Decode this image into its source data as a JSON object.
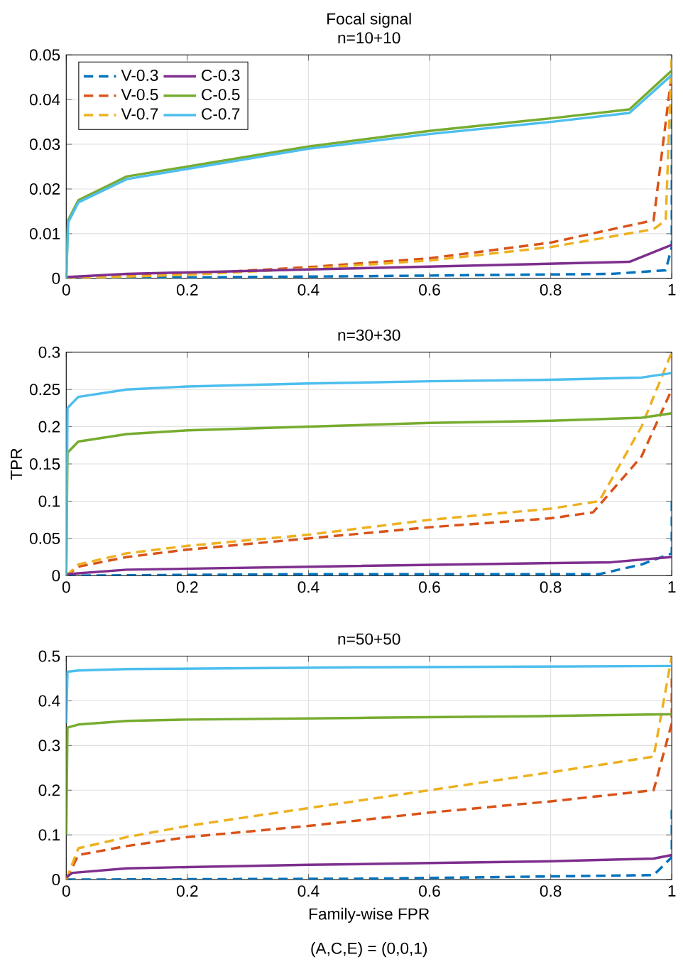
{
  "chart_data": [
    {
      "type": "line",
      "title": "Focal signal",
      "subtitle": "n=10+10",
      "xlim": [
        0,
        1
      ],
      "ylim": [
        0,
        0.05
      ],
      "xticks": [
        0,
        0.2,
        0.4,
        0.6,
        0.8,
        1
      ],
      "yticks": [
        0,
        0.01,
        0.02,
        0.03,
        0.04,
        0.05
      ],
      "grid": true,
      "legend": "top left",
      "series": [
        {
          "name": "V-0.3",
          "color": "#0072bd",
          "line_style": "dashed",
          "x": [
            0,
            0.5,
            0.9,
            0.99,
            1,
            1
          ],
          "values": [
            0,
            0.0005,
            0.001,
            0.0018,
            0.007,
            0.045
          ]
        },
        {
          "name": "V-0.5",
          "color": "#d95319",
          "line_style": "dashed",
          "x": [
            0,
            0.2,
            0.4,
            0.6,
            0.8,
            0.97,
            1
          ],
          "values": [
            0,
            0.001,
            0.0025,
            0.0045,
            0.008,
            0.013,
            0.046
          ]
        },
        {
          "name": "V-0.7",
          "color": "#edb120",
          "line_style": "dashed",
          "x": [
            0,
            0.2,
            0.4,
            0.6,
            0.8,
            0.97,
            0.99,
            1
          ],
          "values": [
            0,
            0.0008,
            0.0022,
            0.004,
            0.007,
            0.011,
            0.013,
            0.05
          ]
        },
        {
          "name": "C-0.3",
          "color": "#7e2f8e",
          "line_style": "solid",
          "x": [
            0,
            0.1,
            0.4,
            0.93,
            1
          ],
          "values": [
            0.0003,
            0.001,
            0.002,
            0.0037,
            0.0075
          ]
        },
        {
          "name": "C-0.5",
          "color": "#77ac30",
          "line_style": "solid",
          "x": [
            0,
            0.003,
            0.02,
            0.1,
            0.2,
            0.4,
            0.6,
            0.8,
            0.93,
            1
          ],
          "values": [
            0,
            0.013,
            0.0175,
            0.0228,
            0.025,
            0.0295,
            0.033,
            0.0358,
            0.0378,
            0.0465
          ]
        },
        {
          "name": "C-0.7",
          "color": "#4dbeee",
          "line_style": "solid",
          "x": [
            0,
            0.003,
            0.02,
            0.1,
            0.2,
            0.4,
            0.6,
            0.8,
            0.93,
            1
          ],
          "values": [
            0,
            0.0125,
            0.017,
            0.0222,
            0.0245,
            0.029,
            0.0323,
            0.035,
            0.037,
            0.0455
          ]
        }
      ]
    },
    {
      "type": "line",
      "title": "n=30+30",
      "ylabel": "TPR",
      "xlim": [
        0,
        1
      ],
      "ylim": [
        0,
        0.3
      ],
      "xticks": [
        0,
        0.2,
        0.4,
        0.6,
        0.8,
        1
      ],
      "yticks": [
        0,
        0.05,
        0.1,
        0.15,
        0.2,
        0.25,
        0.3
      ],
      "grid": true,
      "series": [
        {
          "color": "#0072bd",
          "line_style": "dashed",
          "x": [
            0,
            0.2,
            0.4,
            0.6,
            0.8,
            0.88,
            0.95,
            1,
            1
          ],
          "values": [
            0,
            0.001,
            0.002,
            0.002,
            0.002,
            0.002,
            0.015,
            0.03,
            0.1
          ]
        },
        {
          "color": "#d95319",
          "line_style": "dashed",
          "x": [
            0,
            0.02,
            0.1,
            0.2,
            0.4,
            0.6,
            0.8,
            0.87,
            0.95,
            1
          ],
          "values": [
            0,
            0.012,
            0.025,
            0.035,
            0.05,
            0.065,
            0.077,
            0.085,
            0.16,
            0.25
          ]
        },
        {
          "color": "#edb120",
          "line_style": "dashed",
          "x": [
            0,
            0.02,
            0.1,
            0.2,
            0.4,
            0.6,
            0.8,
            0.88,
            0.95,
            1
          ],
          "values": [
            0,
            0.015,
            0.03,
            0.04,
            0.055,
            0.075,
            0.09,
            0.1,
            0.2,
            0.3
          ]
        },
        {
          "color": "#7e2f8e",
          "line_style": "solid",
          "x": [
            0,
            0.1,
            0.4,
            0.9,
            1
          ],
          "values": [
            0.002,
            0.008,
            0.012,
            0.018,
            0.025
          ]
        },
        {
          "color": "#77ac30",
          "line_style": "solid",
          "x": [
            0,
            0.002,
            0.02,
            0.1,
            0.2,
            0.4,
            0.6,
            0.8,
            0.95,
            1
          ],
          "values": [
            0,
            0.165,
            0.18,
            0.19,
            0.195,
            0.2,
            0.205,
            0.208,
            0.212,
            0.218
          ]
        },
        {
          "color": "#4dbeee",
          "line_style": "solid",
          "x": [
            0,
            0.002,
            0.02,
            0.1,
            0.2,
            0.4,
            0.6,
            0.8,
            0.95,
            1
          ],
          "values": [
            0,
            0.225,
            0.24,
            0.25,
            0.254,
            0.258,
            0.261,
            0.263,
            0.266,
            0.272
          ]
        }
      ]
    },
    {
      "type": "line",
      "title": "n=50+50",
      "xlabel": "Family-wise FPR",
      "annotations": [
        "(A,C,E) = (0,0,1)"
      ],
      "xlim": [
        0,
        1
      ],
      "ylim": [
        0,
        0.5
      ],
      "xticks": [
        0,
        0.2,
        0.4,
        0.6,
        0.8,
        1
      ],
      "yticks": [
        0,
        0.1,
        0.2,
        0.3,
        0.4,
        0.5
      ],
      "grid": true,
      "series": [
        {
          "color": "#0072bd",
          "line_style": "dashed",
          "x": [
            0,
            0.5,
            0.97,
            1,
            1
          ],
          "values": [
            0,
            0.002,
            0.01,
            0.05,
            0.16
          ]
        },
        {
          "color": "#d95319",
          "line_style": "dashed",
          "x": [
            0,
            0.02,
            0.1,
            0.2,
            0.4,
            0.6,
            0.8,
            0.97,
            1,
            1
          ],
          "values": [
            0,
            0.055,
            0.075,
            0.095,
            0.12,
            0.15,
            0.175,
            0.2,
            0.35,
            0.45
          ]
        },
        {
          "color": "#edb120",
          "line_style": "dashed",
          "x": [
            0,
            0.02,
            0.1,
            0.2,
            0.4,
            0.6,
            0.8,
            0.97,
            1
          ],
          "values": [
            0,
            0.07,
            0.095,
            0.12,
            0.16,
            0.2,
            0.24,
            0.275,
            0.5
          ]
        },
        {
          "color": "#7e2f8e",
          "line_style": "solid",
          "x": [
            0,
            0.01,
            0.1,
            0.2,
            0.4,
            0.6,
            0.8,
            0.97,
            1
          ],
          "values": [
            0.005,
            0.015,
            0.025,
            0.028,
            0.033,
            0.037,
            0.041,
            0.047,
            0.055
          ]
        },
        {
          "color": "#77ac30",
          "line_style": "solid",
          "x": [
            0,
            0.002,
            0.02,
            0.1,
            0.2,
            0.5,
            0.8,
            1
          ],
          "values": [
            0.1,
            0.34,
            0.347,
            0.355,
            0.358,
            0.362,
            0.366,
            0.37
          ]
        },
        {
          "color": "#4dbeee",
          "line_style": "solid",
          "x": [
            0,
            0.002,
            0.02,
            0.1,
            0.5,
            1
          ],
          "values": [
            0.35,
            0.465,
            0.468,
            0.471,
            0.475,
            0.478
          ]
        }
      ]
    }
  ]
}
